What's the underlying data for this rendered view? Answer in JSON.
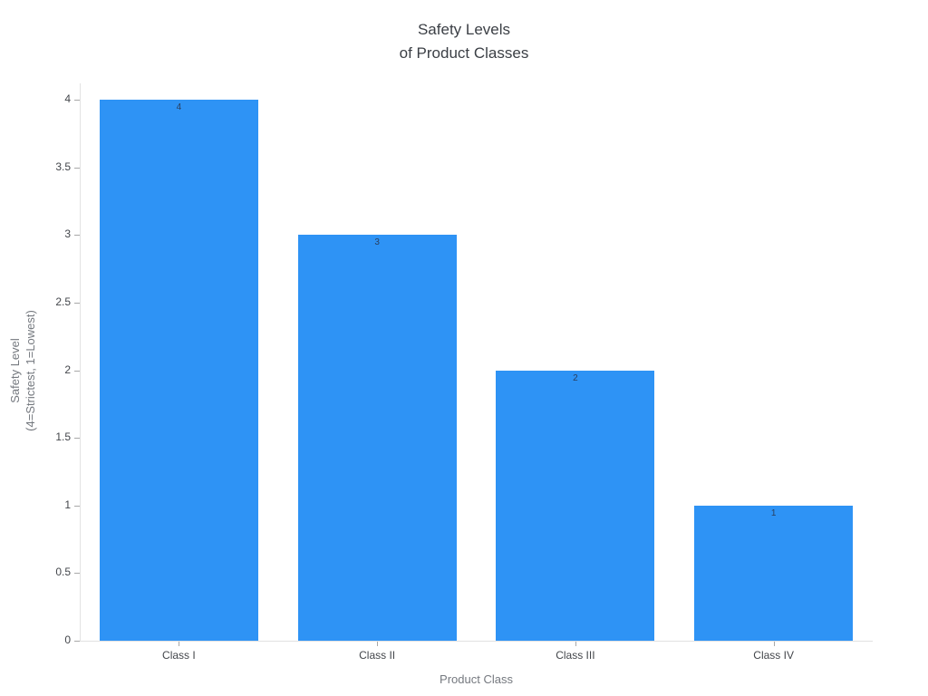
{
  "chart_data": {
    "type": "bar",
    "title_lines": [
      "Safety Levels",
      "of Product Classes"
    ],
    "categories": [
      "Class I",
      "Class II",
      "Class III",
      "Class IV"
    ],
    "values": [
      4,
      3,
      2,
      1
    ],
    "bar_labels": [
      "4",
      "3",
      "2",
      "1"
    ],
    "xlabel": "Product Class",
    "ylabel_lines": [
      "Safety Level",
      "(4=Strictest, 1=Lowest)"
    ],
    "ylim": [
      0,
      4
    ],
    "yticks": [
      0,
      0.5,
      1,
      1.5,
      2,
      2.5,
      3,
      3.5,
      4
    ],
    "grid": false,
    "legend": "none",
    "colors": {
      "bar": "#2e93f5",
      "bar_value_label": "#2a3f5f",
      "axis_line": "#e2e2e2",
      "tick_mark": "#a8a8a8",
      "tick_label": "#43464b",
      "axis_title": "#75797f",
      "title": "#3b3f45",
      "background": "#ffffff"
    }
  }
}
